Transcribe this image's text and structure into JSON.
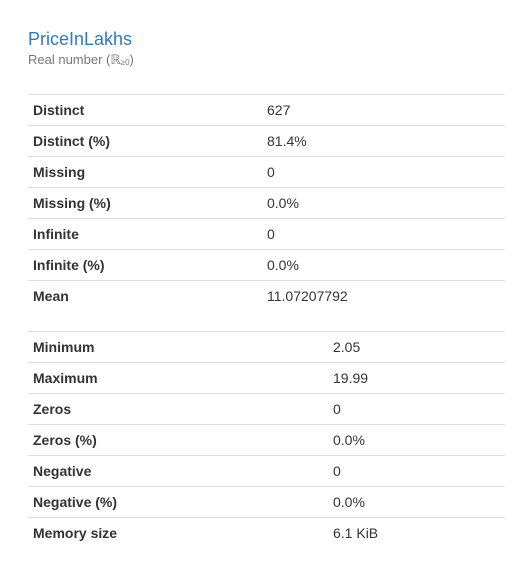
{
  "variable": {
    "name": "PriceInLakhs",
    "type_text": "Real number (",
    "type_symbol": "ℝ",
    "type_sub": "≥0",
    "type_close": ")"
  },
  "table_left": {
    "rows": [
      {
        "label": "Distinct",
        "value": "627"
      },
      {
        "label": "Distinct (%)",
        "value": "81.4%"
      },
      {
        "label": "Missing",
        "value": "0"
      },
      {
        "label": "Missing (%)",
        "value": "0.0%"
      },
      {
        "label": "Infinite",
        "value": "0"
      },
      {
        "label": "Infinite (%)",
        "value": "0.0%"
      },
      {
        "label": "Mean",
        "value": "11.07207792"
      }
    ]
  },
  "table_right": {
    "rows": [
      {
        "label": "Minimum",
        "value": "2.05"
      },
      {
        "label": "Maximum",
        "value": "19.99"
      },
      {
        "label": "Zeros",
        "value": "0"
      },
      {
        "label": "Zeros (%)",
        "value": "0.0%"
      },
      {
        "label": "Negative",
        "value": "0"
      },
      {
        "label": "Negative (%)",
        "value": "0.0%"
      },
      {
        "label": "Memory size",
        "value": "6.1 KiB"
      }
    ]
  }
}
